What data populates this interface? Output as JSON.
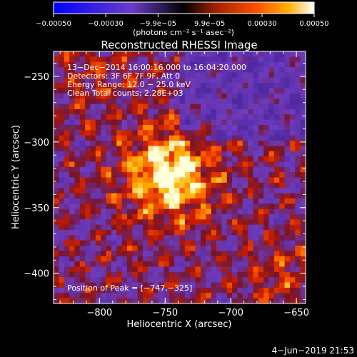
{
  "chart_data": {
    "type": "heatmap",
    "title": "Reconstructed RHESSI Image",
    "xlabel": "Heliocentric X (arcsec)",
    "ylabel": "Heliocentric Y (arcsec)",
    "xlim": [
      -835,
      -643
    ],
    "ylim": [
      -423,
      -231
    ],
    "x_ticks": [
      -800,
      -750,
      -700,
      -650
    ],
    "y_ticks": [
      -250,
      -300,
      -350,
      -400
    ],
    "x_tick_labels": [
      "−800",
      "−750",
      "−700",
      "−650"
    ],
    "y_tick_labels": [
      "−250",
      "−300",
      "−350",
      "−400"
    ],
    "colorbar": {
      "range": [
        -0.0005,
        0.0005
      ],
      "ticks": [
        -0.0005,
        -0.0003,
        -9.9e-05,
        9.9e-05,
        0.0003,
        0.0005
      ],
      "tick_labels": [
        "−0.00050",
        "−0.00030",
        "−9.9e−05",
        "9.9e−05",
        "0.00030",
        "0.00050"
      ],
      "units": "(photons cm⁻² s⁻¹ asec⁻²)"
    },
    "annotations": [
      "13−Dec−2014 16:00:16.000 to 16:04:20.000",
      "Detectors: 3F 6F 7F 9F, Att 0",
      "Energy Range: 12.0 − 25.0 keV",
      "Clean     Total counts: 2.28E+03"
    ],
    "peak_label": "Position of Peak = [−747,−325]",
    "peak": {
      "x": -747,
      "y": -325
    },
    "grid": false
  },
  "footer": {
    "timestamp": "4−Jun−2019 21:53"
  }
}
